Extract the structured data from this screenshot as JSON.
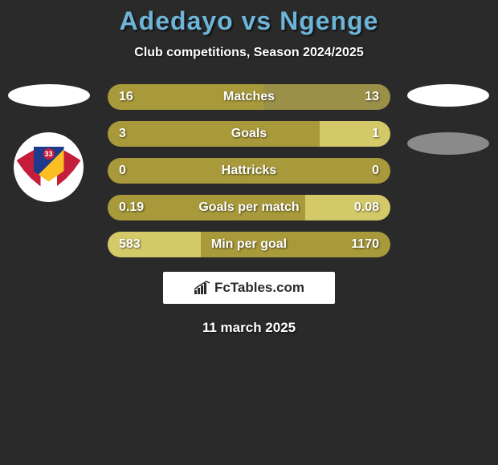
{
  "title": "Adedayo vs Ngenge",
  "subtitle": "Club competitions, Season 2024/2025",
  "date": "11 march 2025",
  "logo_text": "FcTables.com",
  "colors": {
    "title": "#6db5d8",
    "text": "#ffffff",
    "background": "#2a2a2a",
    "bar_primary": "#a89a3a",
    "bar_secondary": "#d4c968",
    "bar_tertiary": "#9b9048",
    "logo_bg": "#ffffff"
  },
  "crest": {
    "number": "33",
    "wing_color": "#c41e3a",
    "shield_blue": "#1e3a8a",
    "shield_yellow": "#fbbf24"
  },
  "stats": [
    {
      "label": "Matches",
      "left_val": "16",
      "right_val": "13",
      "left_pct": 55,
      "right_pct": 45,
      "left_color": "#a89a3a",
      "right_color": "#9b9048"
    },
    {
      "label": "Goals",
      "left_val": "3",
      "right_val": "1",
      "left_pct": 75,
      "right_pct": 25,
      "left_color": "#a89a3a",
      "right_color": "#d4c968"
    },
    {
      "label": "Hattricks",
      "left_val": "0",
      "right_val": "0",
      "left_pct": 50,
      "right_pct": 50,
      "left_color": "#a89a3a",
      "right_color": "#a89a3a"
    },
    {
      "label": "Goals per match",
      "left_val": "0.19",
      "right_val": "0.08",
      "left_pct": 70,
      "right_pct": 30,
      "left_color": "#a89a3a",
      "right_color": "#d4c968"
    },
    {
      "label": "Min per goal",
      "left_val": "583",
      "right_val": "1170",
      "left_pct": 33,
      "right_pct": 67,
      "left_color": "#d4c968",
      "right_color": "#a89a3a"
    }
  ]
}
